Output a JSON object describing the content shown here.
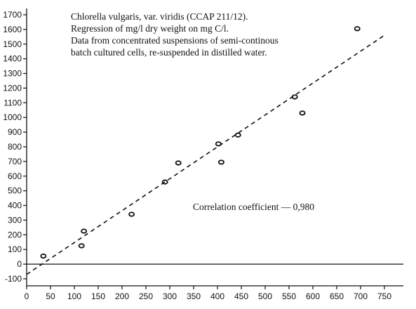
{
  "chart_data": {
    "type": "scatter",
    "title_lines": [
      "Chlorella vulgaris, var. viridis (CCAP 211/12).",
      "Regression of mg/l dry weight on mg C/l.",
      "Data from concentrated suspensions of semi-continous",
      "batch cultured cells, re-suspended in distilled water."
    ],
    "annotation": "Correlation coefficient — 0,980",
    "xlim": [
      0,
      750
    ],
    "ylim": [
      -100,
      1700
    ],
    "x_ticks": [
      0,
      50,
      100,
      150,
      200,
      250,
      300,
      350,
      400,
      450,
      500,
      550,
      600,
      650,
      700,
      750
    ],
    "y_ticks": [
      -100,
      0,
      100,
      200,
      300,
      400,
      500,
      600,
      700,
      800,
      900,
      1000,
      1100,
      1200,
      1300,
      1400,
      1500,
      1600,
      1700
    ],
    "series": [
      {
        "points": [
          {
            "x": 35,
            "y": 55
          },
          {
            "x": 115,
            "y": 125
          },
          {
            "x": 120,
            "y": 225
          },
          {
            "x": 220,
            "y": 340
          },
          {
            "x": 290,
            "y": 560
          },
          {
            "x": 318,
            "y": 690
          },
          {
            "x": 402,
            "y": 820
          },
          {
            "x": 408,
            "y": 695
          },
          {
            "x": 443,
            "y": 880
          },
          {
            "x": 562,
            "y": 1140
          },
          {
            "x": 578,
            "y": 1030
          },
          {
            "x": 693,
            "y": 1605
          }
        ]
      }
    ],
    "regression_line": {
      "x": [
        0,
        750
      ],
      "y": [
        -70,
        1560
      ],
      "style": "dashed"
    },
    "reference_line_y": 0,
    "grid": false
  }
}
